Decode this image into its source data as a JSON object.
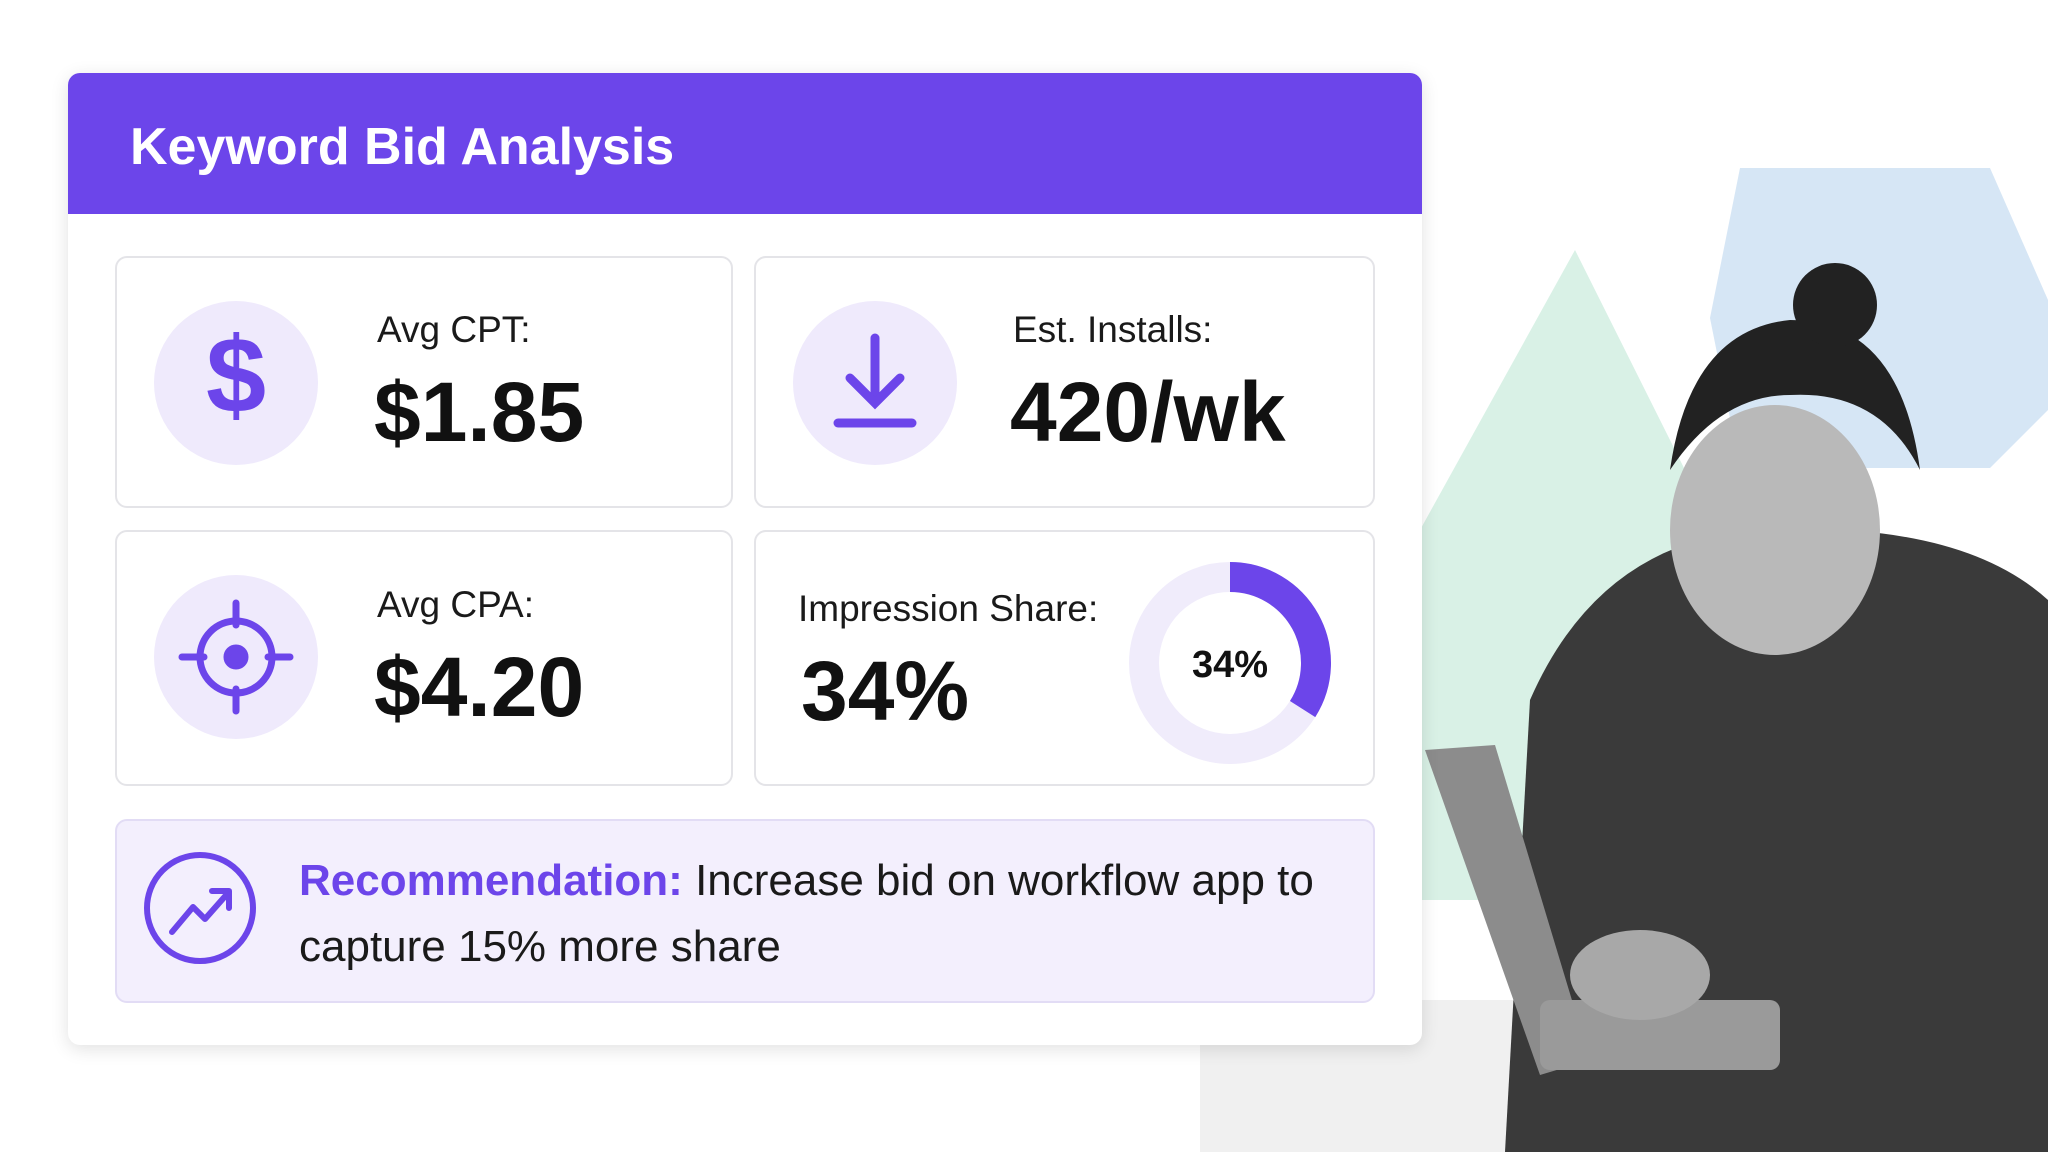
{
  "header": {
    "title": "Keyword Bid Analysis"
  },
  "metrics": [
    {
      "label": "Avg CPT:",
      "value": "$1.85"
    },
    {
      "label": "Est. Installs:",
      "value": "420/wk"
    },
    {
      "label": "Avg CPA:",
      "value": "$4.20"
    }
  ],
  "impression_share": {
    "label": "Impression Share:",
    "value": 34,
    "value_label": "34%"
  },
  "recommendation": {
    "label": "Recommendation:",
    "text": "Increase bid on workflow app to capture 15% more share"
  }
}
